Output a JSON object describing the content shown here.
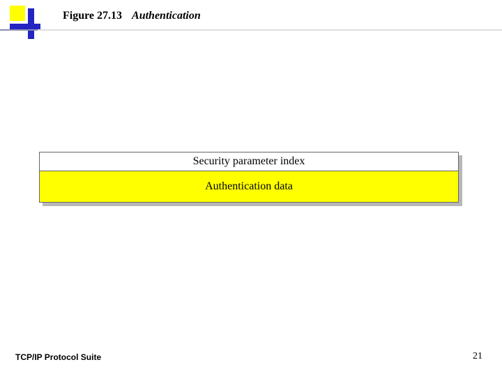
{
  "colors": {
    "yellow": "#ffff00",
    "blue": "#2424c2",
    "rule_accent": "#8a8ab5",
    "border": "#666666",
    "row1_bg": "#ffffff",
    "row2_bg": "#ffff00",
    "shadow": "#b7b7b7"
  },
  "title": {
    "label": "Figure 27.13",
    "caption": "Authentication"
  },
  "diagram": {
    "type": "table",
    "rows": [
      {
        "text": "Security parameter index",
        "bg_key": "row1_bg",
        "padding_v": 5
      },
      {
        "text": "Authentication data",
        "bg_key": "row2_bg",
        "padding_v": 14
      }
    ]
  },
  "footer": {
    "left": "TCP/IP Protocol Suite",
    "page_number": "21"
  }
}
